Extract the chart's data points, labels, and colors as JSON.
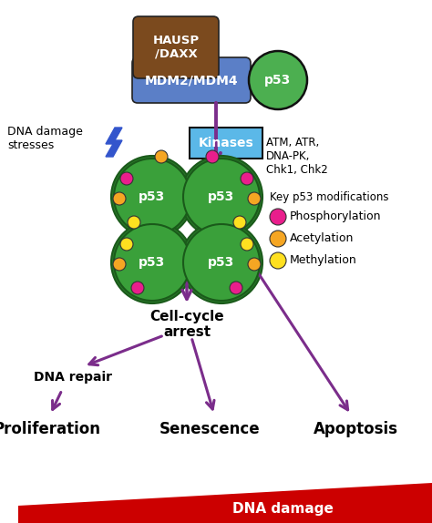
{
  "bg_color": "#ffffff",
  "arrow_color": "#7B2D8B",
  "hausp_color": "#7B4A1E",
  "mdm2_color": "#5B7FC7",
  "p53_top_color": "#4CAF50",
  "p53_tetramer_color": "#3aA03a",
  "kinases_color": "#5BB8E8",
  "lightning_color": "#3355CC",
  "phospho_color": "#E91E8C",
  "acetyl_color": "#F5A623",
  "methyl_color": "#FFE020",
  "dna_damage_bar_color": "#CC0000",
  "hausp_text": "HAUSP\n/DAXX",
  "mdm2_text": "MDM2/MDM4",
  "p53_top_text": "p53",
  "kinases_text": "Kinases",
  "kinases_list": "ATM, ATR,\nDNA-PK,\nChk1, Chk2",
  "dna_stresses_text": "DNA damage\nstresses",
  "key_mods_title": "Key p53 modifications",
  "phospho_label": "Phosphorylation",
  "acetyl_label": "Acetylation",
  "methyl_label": "Methylation",
  "cell_cycle_text": "Cell-cycle\narrest",
  "dna_repair_text": "DNA repair",
  "proliferation_text": "Proliferation",
  "senescence_text": "Senescence",
  "apoptosis_text": "Apoptosis",
  "dna_damage_text": "DNA damage"
}
